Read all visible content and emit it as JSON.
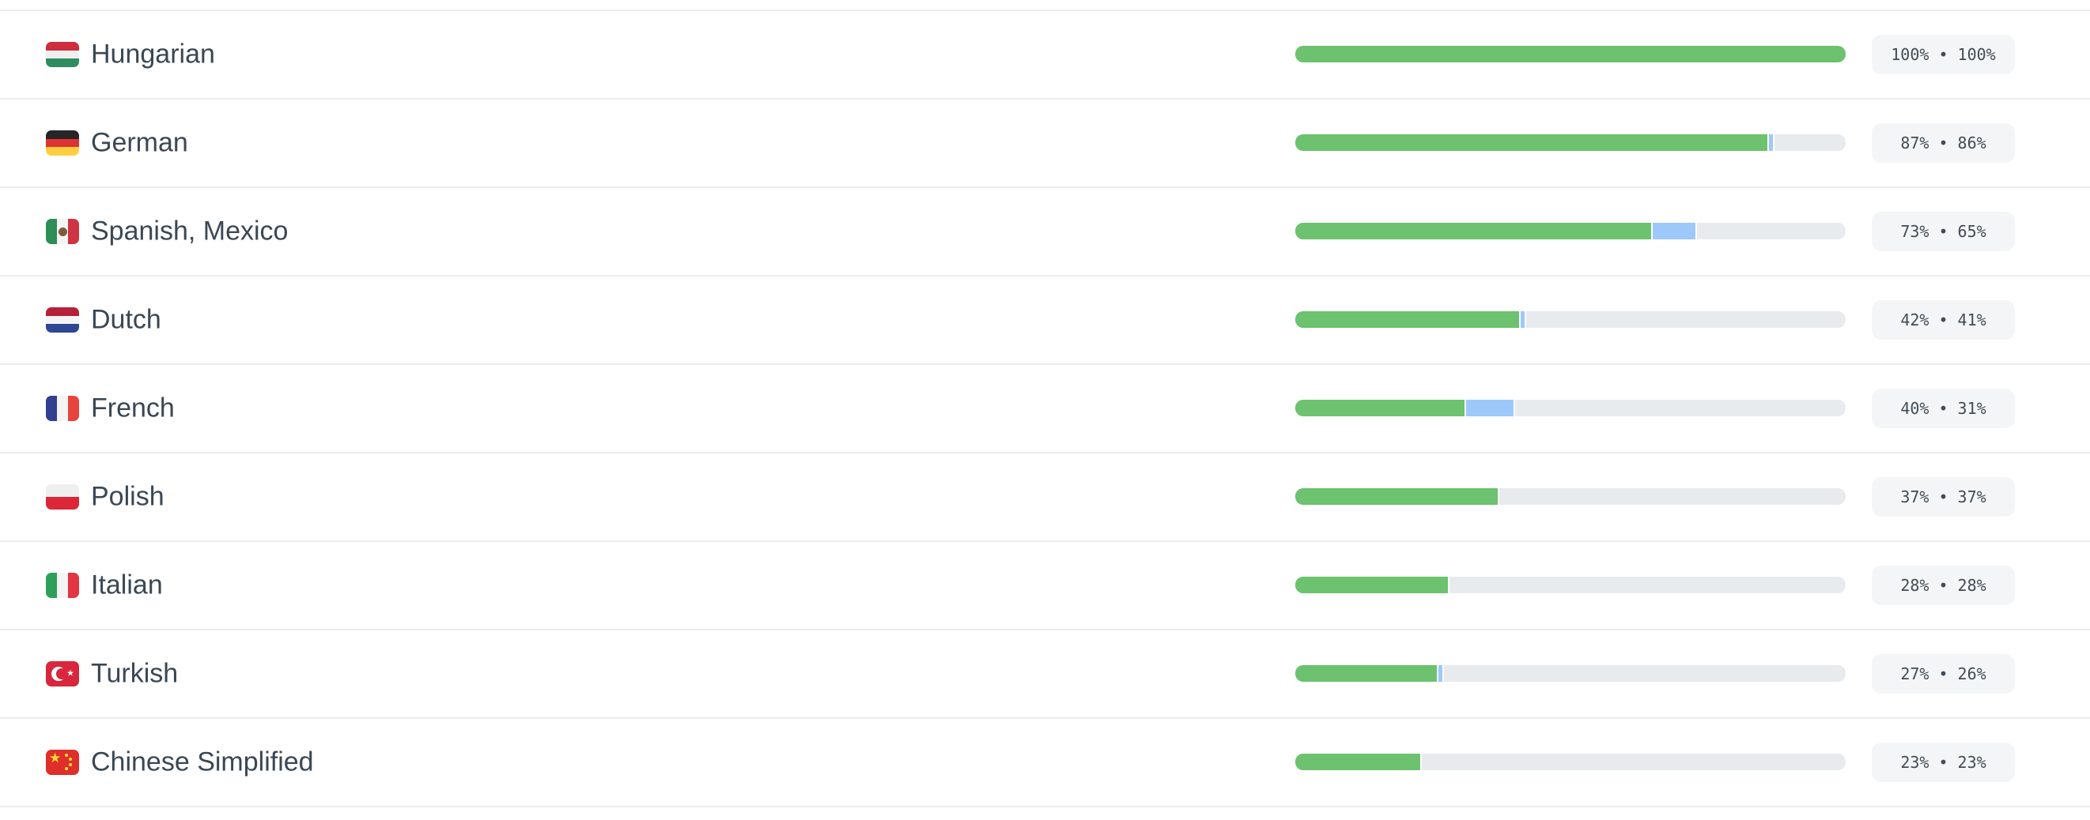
{
  "page": {
    "background_color": "#ffffff",
    "divider_color": "#ebedee"
  },
  "progress_colors": {
    "translated_green": "#6cc26e",
    "pending_blue": "#9dc9fa",
    "track_gray": "#e8ebee",
    "badge_background": "#f4f5f6",
    "badge_text": "#414c57",
    "label_text": "#3a4754"
  },
  "language_list": {
    "rows": [
      {
        "language": "Hungarian",
        "badge_label": "100% • 100%",
        "percent_primary": 100,
        "percent_secondary": 100,
        "bar": {
          "green": 100,
          "blue": 0
        },
        "flag": {
          "name": "hungary-flag",
          "direction": "column",
          "stripes": [
            "#cd2d3d",
            "#eef0f0",
            "#2e8c5f"
          ],
          "emblem": null
        }
      },
      {
        "language": "German",
        "badge_label": "87% • 86%",
        "percent_primary": 87,
        "percent_secondary": 86,
        "bar": {
          "green": 86,
          "blue": 1
        },
        "flag": {
          "name": "germany-flag",
          "direction": "column",
          "stripes": [
            "#262626",
            "#dd3333",
            "#ffce3e"
          ],
          "emblem": null
        }
      },
      {
        "language": "Spanish, Mexico",
        "badge_label": "73% • 65%",
        "percent_primary": 73,
        "percent_secondary": 65,
        "bar": {
          "green": 65,
          "blue": 8
        },
        "flag": {
          "name": "mexico-flag",
          "direction": "row",
          "stripes": [
            "#2d8e57",
            "#f4f4f4",
            "#ce3441"
          ],
          "emblem": "eagle"
        }
      },
      {
        "language": "Dutch",
        "badge_label": "42% • 41%",
        "percent_primary": 42,
        "percent_secondary": 41,
        "bar": {
          "green": 41,
          "blue": 1
        },
        "flag": {
          "name": "netherlands-flag",
          "direction": "column",
          "stripes": [
            "#b62039",
            "#f4f4f4",
            "#2d4794"
          ],
          "emblem": null
        }
      },
      {
        "language": "French",
        "badge_label": "40% • 31%",
        "percent_primary": 40,
        "percent_secondary": 31,
        "bar": {
          "green": 31,
          "blue": 9
        },
        "flag": {
          "name": "france-flag",
          "direction": "row",
          "stripes": [
            "#323e8f",
            "#f4f4f4",
            "#e8443d"
          ],
          "emblem": null
        }
      },
      {
        "language": "Polish",
        "badge_label": "37% • 37%",
        "percent_primary": 37,
        "percent_secondary": 37,
        "bar": {
          "green": 37,
          "blue": 0
        },
        "flag": {
          "name": "poland-flag",
          "direction": "column",
          "stripes": [
            "#efefef",
            "#dc2738"
          ],
          "emblem": null
        }
      },
      {
        "language": "Italian",
        "badge_label": "28% • 28%",
        "percent_primary": 28,
        "percent_secondary": 28,
        "bar": {
          "green": 28,
          "blue": 0
        },
        "flag": {
          "name": "italy-flag",
          "direction": "row",
          "stripes": [
            "#2da05a",
            "#f4f4f4",
            "#e23642"
          ],
          "emblem": null
        }
      },
      {
        "language": "Turkish",
        "badge_label": "27% • 26%",
        "percent_primary": 27,
        "percent_secondary": 26,
        "bar": {
          "green": 26,
          "blue": 1
        },
        "flag": {
          "name": "turkey-flag",
          "direction": "row",
          "stripes": [
            "#d8273d"
          ],
          "emblem": "crescent-star"
        }
      },
      {
        "language": "Chinese Simplified",
        "badge_label": "23% • 23%",
        "percent_primary": 23,
        "percent_secondary": 23,
        "bar": {
          "green": 23,
          "blue": 0
        },
        "flag": {
          "name": "china-flag",
          "direction": "row",
          "stripes": [
            "#de2f2a"
          ],
          "emblem": "stars"
        }
      }
    ]
  }
}
